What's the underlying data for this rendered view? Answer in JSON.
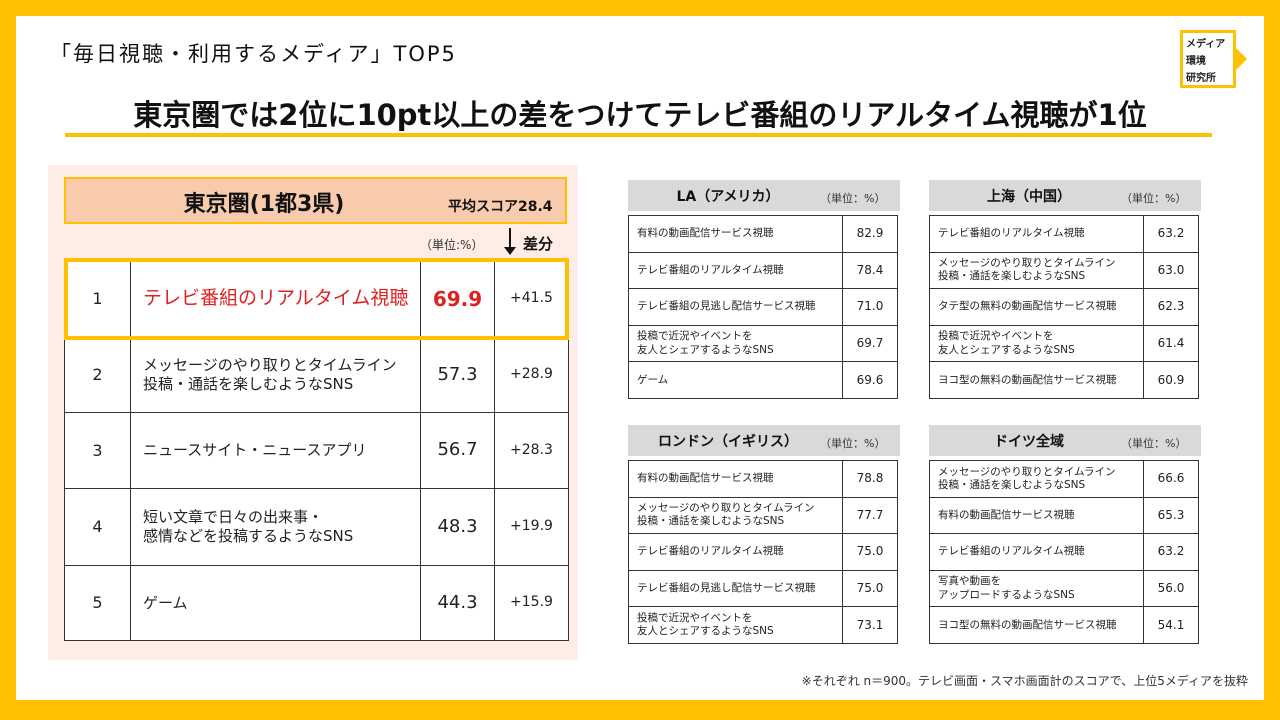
{
  "header": {
    "label": "「毎日視聴・利用するメディア」TOP5",
    "title": "東京圏では2位に10pt以上の差をつけてテレビ番組のリアルタイム視聴が1位",
    "logo": [
      "メディア",
      "環境",
      "研究所"
    ]
  },
  "tokyo": {
    "title": "東京圏(1都3県)",
    "average": "平均スコア28.4",
    "unit": "（単位:%）",
    "diff_label": "差分",
    "rows": [
      [
        "1",
        "テレビ番組のリアルタイム視聴",
        "69.9",
        "+41.5"
      ],
      [
        "2",
        "メッセージのやり取りとタイムライン\n投稿・通話を楽しむようなSNS",
        "57.3",
        "+28.9"
      ],
      [
        "3",
        "ニュースサイト・ニュースアプリ",
        "56.7",
        "+28.3"
      ],
      [
        "4",
        "短い文章で日々の出来事・\n感情などを投稿するようなSNS",
        "48.3",
        "+19.9"
      ],
      [
        "5",
        "ゲーム",
        "44.3",
        "+15.9"
      ]
    ]
  },
  "cities": [
    {
      "title": "LA（アメリカ）",
      "unit": "（単位：%）",
      "rows": [
        [
          "有料の動画配信サービス視聴",
          "82.9"
        ],
        [
          "テレビ番組のリアルタイム視聴",
          "78.4"
        ],
        [
          "テレビ番組の見逃し配信サービス視聴",
          "71.0"
        ],
        [
          "投稿で近況やイベントを\n友人とシェアするようなSNS",
          "69.7"
        ],
        [
          "ゲーム",
          "69.6"
        ]
      ]
    },
    {
      "title": "上海（中国）",
      "unit": "（単位：%）",
      "rows": [
        [
          "テレビ番組のリアルタイム視聴",
          "63.2"
        ],
        [
          "メッセージのやり取りとタイムライン\n投稿・通話を楽しむようなSNS",
          "63.0"
        ],
        [
          "タテ型の無料の動画配信サービス視聴",
          "62.3"
        ],
        [
          "投稿で近況やイベントを\n友人とシェアするようなSNS",
          "61.4"
        ],
        [
          "ヨコ型の無料の動画配信サービス視聴",
          "60.9"
        ]
      ]
    },
    {
      "title": "ロンドン（イギリス）",
      "unit": "（単位：%）",
      "rows": [
        [
          "有料の動画配信サービス視聴",
          "78.8"
        ],
        [
          "メッセージのやり取りとタイムライン\n投稿・通話を楽しむようなSNS",
          "77.7"
        ],
        [
          "テレビ番組のリアルタイム視聴",
          "75.0"
        ],
        [
          "テレビ番組の見逃し配信サービス視聴",
          "75.0"
        ],
        [
          "投稿で近況やイベントを\n友人とシェアするようなSNS",
          "73.1"
        ]
      ]
    },
    {
      "title": "ドイツ全域",
      "unit": "（単位：%）",
      "rows": [
        [
          "メッセージのやり取りとタイムライン\n投稿・通話を楽しむようなSNS",
          "66.6"
        ],
        [
          "有料の動画配信サービス視聴",
          "65.3"
        ],
        [
          "テレビ番組のリアルタイム視聴",
          "63.2"
        ],
        [
          "写真や動画を\nアップロードするようなSNS",
          "56.0"
        ],
        [
          "ヨコ型の無料の動画配信サービス視聴",
          "54.1"
        ]
      ]
    }
  ],
  "footnote": "※それぞれ n＝900。テレビ画面・スマホ画面計のスコアで、上位5メディアを抜粋"
}
